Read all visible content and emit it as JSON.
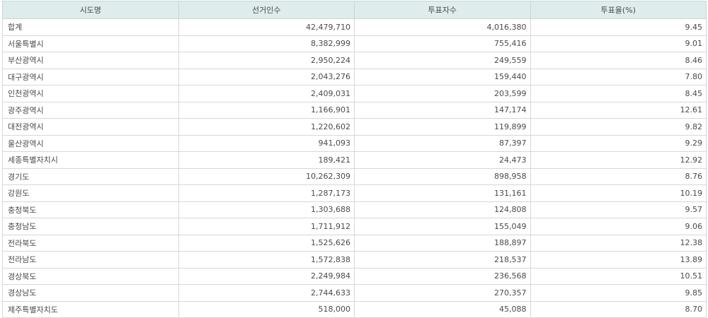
{
  "table": {
    "headers": [
      "시도명",
      "선거인수",
      "투표자수",
      "투표율(%)"
    ],
    "rows": [
      [
        "합계",
        "42,479,710",
        "4,016,380",
        "9.45"
      ],
      [
        "서울특별시",
        "8,382,999",
        "755,416",
        "9.01"
      ],
      [
        "부산광역시",
        "2,950,224",
        "249,559",
        "8.46"
      ],
      [
        "대구광역시",
        "2,043,276",
        "159,440",
        "7.80"
      ],
      [
        "인천광역시",
        "2,409,031",
        "203,599",
        "8.45"
      ],
      [
        "광주광역시",
        "1,166,901",
        "147,174",
        "12.61"
      ],
      [
        "대전광역시",
        "1,220,602",
        "119,899",
        "9.82"
      ],
      [
        "울산광역시",
        "941,093",
        "87,397",
        "9.29"
      ],
      [
        "세종특별자치시",
        "189,421",
        "24,473",
        "12.92"
      ],
      [
        "경기도",
        "10,262,309",
        "898,958",
        "8.76"
      ],
      [
        "강원도",
        "1,287,173",
        "131,161",
        "10.19"
      ],
      [
        "충청북도",
        "1,303,688",
        "124,808",
        "9.57"
      ],
      [
        "충청남도",
        "1,711,912",
        "155,049",
        "9.06"
      ],
      [
        "전라북도",
        "1,525,626",
        "188,897",
        "12.38"
      ],
      [
        "전라남도",
        "1,572,838",
        "218,537",
        "13.89"
      ],
      [
        "경상북도",
        "2,249,984",
        "236,568",
        "10.51"
      ],
      [
        "경상남도",
        "2,744,633",
        "270,357",
        "9.85"
      ],
      [
        "제주특별자치도",
        "518,000",
        "45,088",
        "8.70"
      ]
    ]
  }
}
